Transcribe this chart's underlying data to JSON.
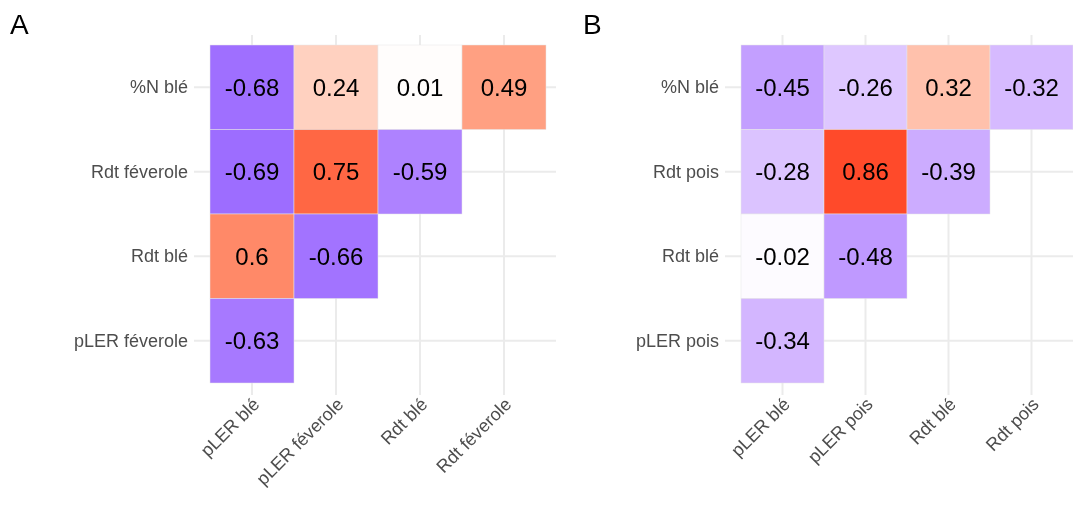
{
  "chart_data": [
    {
      "type": "heatmap",
      "title": "A",
      "categories": [
        "pLER blé",
        "pLER féverole",
        "Rdt blé",
        "Rdt féverole"
      ],
      "y_categories": [
        "%N blé",
        "Rdt féverole",
        "Rdt blé",
        "pLER féverole"
      ],
      "cells": [
        [
          -0.68,
          0.24,
          0.01,
          0.49
        ],
        [
          -0.69,
          0.75,
          -0.59,
          null
        ],
        [
          0.6,
          -0.66,
          null,
          null
        ],
        [
          -0.63,
          null,
          null,
          null
        ]
      ],
      "data_labels": true,
      "colors": [
        "#7c48ff",
        "#ffffff",
        "#ff4a2a"
      ],
      "grid": true
    },
    {
      "type": "heatmap",
      "title": "B",
      "categories": [
        "pLER blé",
        "pLER pois",
        "Rdt blé",
        "Rdt pois"
      ],
      "y_categories": [
        "%N blé",
        "Rdt pois",
        "Rdt blé",
        "pLER pois"
      ],
      "cells": [
        [
          -0.45,
          -0.26,
          0.32,
          -0.32
        ],
        [
          -0.28,
          0.86,
          -0.39,
          null
        ],
        [
          -0.02,
          -0.48,
          null,
          null
        ],
        [
          -0.34,
          null,
          null,
          null
        ]
      ],
      "data_labels": true,
      "colors": [
        "#7c48ff",
        "#ffffff",
        "#ff4a2a"
      ],
      "grid": true
    }
  ]
}
